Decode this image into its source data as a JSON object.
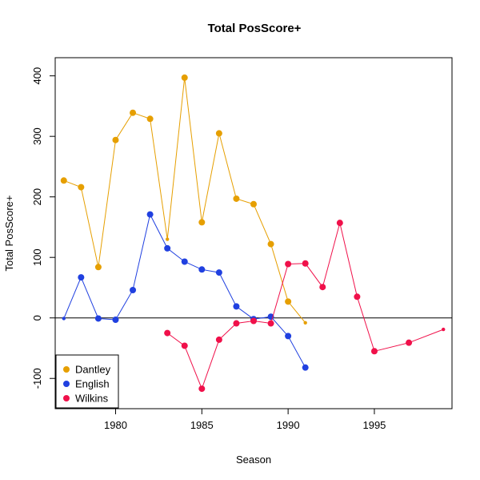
{
  "chart_data": {
    "type": "line",
    "title": "Total PosScore+",
    "xlabel": "Season",
    "ylabel": "Total PosScore+",
    "xlim": [
      1976.5,
      1999.5
    ],
    "ylim": [
      -150,
      430
    ],
    "x_ticks": [
      1980,
      1985,
      1990,
      1995
    ],
    "x_tick_labels": [
      "1980",
      "1985",
      "1990",
      "1995"
    ],
    "y_ticks": [
      -100,
      0,
      100,
      200,
      300,
      400
    ],
    "y_tick_labels": [
      "-100",
      "0",
      "100",
      "200",
      "300",
      "400"
    ],
    "reference_line_y": 0,
    "grid": false,
    "legend_position": "bottom-left",
    "series": [
      {
        "name": "Dantley",
        "color": "#E69F00",
        "points": [
          {
            "x": 1977,
            "y": 227
          },
          {
            "x": 1978,
            "y": 216
          },
          {
            "x": 1979,
            "y": 84
          },
          {
            "x": 1980,
            "y": 294
          },
          {
            "x": 1981,
            "y": 339
          },
          {
            "x": 1982,
            "y": 329
          },
          {
            "x": 1983,
            "y": 130,
            "small": true
          },
          {
            "x": 1984,
            "y": 397
          },
          {
            "x": 1985,
            "y": 158
          },
          {
            "x": 1986,
            "y": 305
          },
          {
            "x": 1987,
            "y": 197
          },
          {
            "x": 1988,
            "y": 188
          },
          {
            "x": 1989,
            "y": 122
          },
          {
            "x": 1990,
            "y": 27
          },
          {
            "x": 1991,
            "y": -8,
            "small": true
          }
        ]
      },
      {
        "name": "English",
        "color": "#2040E0",
        "points": [
          {
            "x": 1977,
            "y": -1,
            "small": true
          },
          {
            "x": 1978,
            "y": 67
          },
          {
            "x": 1979,
            "y": -1
          },
          {
            "x": 1980,
            "y": -3
          },
          {
            "x": 1981,
            "y": 46
          },
          {
            "x": 1982,
            "y": 171
          },
          {
            "x": 1983,
            "y": 115
          },
          {
            "x": 1984,
            "y": 93
          },
          {
            "x": 1985,
            "y": 80
          },
          {
            "x": 1986,
            "y": 75
          },
          {
            "x": 1987,
            "y": 19
          },
          {
            "x": 1988,
            "y": -2
          },
          {
            "x": 1989,
            "y": 2
          },
          {
            "x": 1990,
            "y": -30
          },
          {
            "x": 1991,
            "y": -82
          }
        ]
      },
      {
        "name": "Wilkins",
        "color": "#F0104A",
        "points": [
          {
            "x": 1983,
            "y": -25
          },
          {
            "x": 1984,
            "y": -46
          },
          {
            "x": 1985,
            "y": -117
          },
          {
            "x": 1986,
            "y": -36
          },
          {
            "x": 1987,
            "y": -9
          },
          {
            "x": 1988,
            "y": -5
          },
          {
            "x": 1989,
            "y": -9
          },
          {
            "x": 1990,
            "y": 89
          },
          {
            "x": 1991,
            "y": 90
          },
          {
            "x": 1992,
            "y": 51
          },
          {
            "x": 1993,
            "y": 157
          },
          {
            "x": 1994,
            "y": 35
          },
          {
            "x": 1995,
            "y": -55
          },
          {
            "x": 1997,
            "y": -41
          },
          {
            "x": 1999,
            "y": -19,
            "small": true
          }
        ]
      }
    ]
  }
}
